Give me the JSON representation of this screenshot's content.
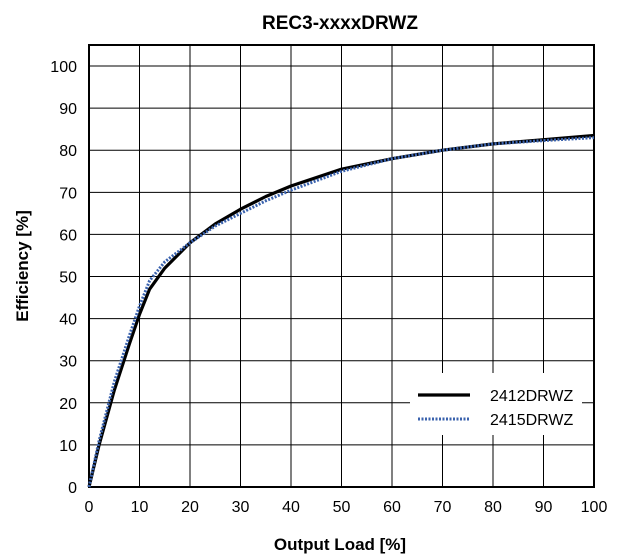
{
  "chart_data": {
    "type": "line",
    "title": "REC3-xxxxDRWZ",
    "xlabel": "Output Load [%]",
    "ylabel": "Efficiency [%]",
    "xlim": [
      0,
      100
    ],
    "ylim": [
      0,
      105
    ],
    "xticks": [
      0,
      10,
      20,
      30,
      40,
      50,
      60,
      70,
      80,
      90,
      100
    ],
    "yticks": [
      0,
      10,
      20,
      30,
      40,
      50,
      60,
      70,
      80,
      90,
      100
    ],
    "grid": true,
    "legend_position": "bottom-right",
    "series": [
      {
        "name": "2412DRWZ",
        "color": "#000000",
        "style": "solid",
        "x": [
          0,
          2,
          5,
          8,
          10,
          12,
          15,
          20,
          25,
          30,
          35,
          40,
          50,
          60,
          70,
          80,
          90,
          100
        ],
        "y": [
          0,
          10,
          23,
          34,
          41,
          47,
          52,
          58,
          62.5,
          66,
          69,
          71.5,
          75.5,
          78,
          80,
          81.5,
          82.5,
          83.5
        ]
      },
      {
        "name": "2415DRWZ",
        "color": "#3a62ad",
        "style": "dotted",
        "x": [
          0,
          2,
          5,
          8,
          10,
          12,
          15,
          20,
          25,
          30,
          35,
          40,
          50,
          60,
          70,
          80,
          90,
          100
        ],
        "y": [
          0,
          11,
          25,
          36,
          43,
          49,
          53.5,
          58,
          62,
          65,
          68,
          70.5,
          75,
          78,
          80,
          81.5,
          82.3,
          83
        ]
      }
    ]
  }
}
